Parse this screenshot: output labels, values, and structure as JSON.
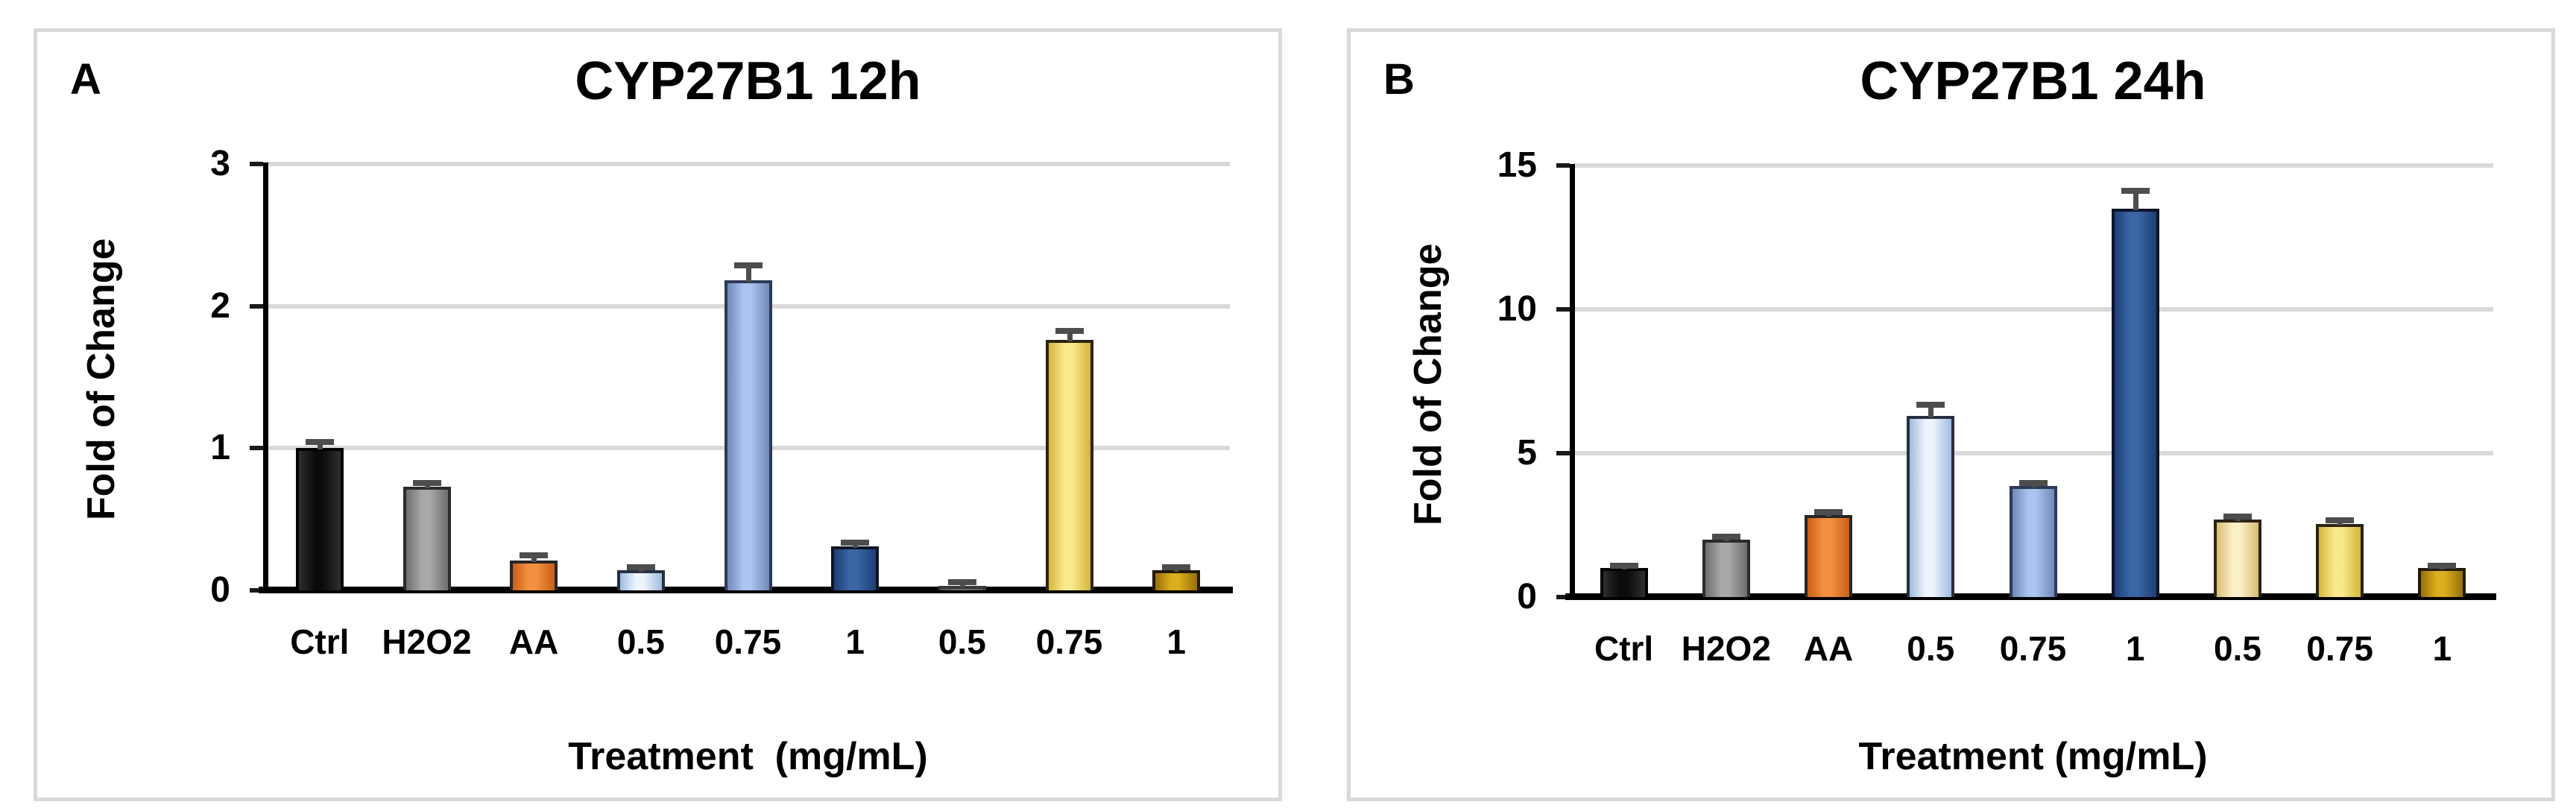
{
  "figure": {
    "background_color": "#ffffff",
    "panel_border_color": "#d9d9d9",
    "gridline_color": "#d9d9d9",
    "axis_color": "#000000",
    "error_bar_color": "#4d4d4d"
  },
  "palette": {
    "black": [
      "#2e2e2e",
      "#0b0b0b",
      "#000000"
    ],
    "gray": [
      "#6e6e6e",
      "#a9a9a9",
      "#2b2b2b"
    ],
    "orange": [
      "#c95f17",
      "#f29140",
      "#262626"
    ],
    "pale-blue": [
      "#9fbcdf",
      "#eef4fc",
      "#27303f"
    ],
    "cornflower": [
      "#7088b6",
      "#abc4f0",
      "#2c3a57"
    ],
    "navy": [
      "#1e3e75",
      "#3a66a6",
      "#0d1526"
    ],
    "sliver": [
      "#555555",
      "#707070",
      "#3a3a3a"
    ],
    "cream": [
      "#d8bd72",
      "#faf0c8",
      "#2b2417"
    ],
    "yellow": [
      "#d6b53a",
      "#f9e98e",
      "#2b2312"
    ],
    "gold": [
      "#96700a",
      "#dcae1f",
      "#231a05"
    ]
  },
  "chart_data": [
    {
      "type": "bar",
      "panel_label": "A",
      "title": "CYP27B1 12h",
      "xlabel": "Treatment  (mg/mL)",
      "ylabel": "Fold of Change",
      "ylim": [
        0,
        3
      ],
      "yticks": [
        0,
        1,
        2,
        3
      ],
      "grid": true,
      "legend": null,
      "categories": [
        "Ctrl",
        "H2O2",
        "AA",
        "0.5",
        "0.75",
        "1",
        "0.5",
        "0.75",
        "1"
      ],
      "values": [
        1.0,
        0.73,
        0.21,
        0.14,
        2.18,
        0.31,
        0.03,
        1.76,
        0.14
      ],
      "errors": [
        0.04,
        0.02,
        0.03,
        0.02,
        0.1,
        0.02,
        0.02,
        0.06,
        0.02
      ],
      "bar_colors": [
        "black",
        "gray",
        "orange",
        "pale-blue",
        "cornflower",
        "navy",
        "sliver",
        "yellow",
        "gold"
      ]
    },
    {
      "type": "bar",
      "panel_label": "B",
      "title": "CYP27B1 24h",
      "xlabel": "Treatment (mg/mL)",
      "ylabel": "Fold of Change",
      "ylim": [
        0,
        15
      ],
      "yticks": [
        0,
        5,
        10,
        15
      ],
      "grid": true,
      "legend": null,
      "categories": [
        "Ctrl",
        "H2O2",
        "AA",
        "0.5",
        "0.75",
        "1",
        "0.5",
        "0.75",
        "1"
      ],
      "values": [
        1.0,
        2.0,
        2.85,
        6.3,
        3.85,
        13.5,
        2.7,
        2.55,
        1.0
      ],
      "errors": [
        0.05,
        0.06,
        0.08,
        0.35,
        0.1,
        0.6,
        0.08,
        0.1,
        0.05
      ],
      "bar_colors": [
        "black",
        "gray",
        "orange",
        "pale-blue",
        "cornflower",
        "navy",
        "cream",
        "yellow",
        "gold"
      ]
    }
  ]
}
